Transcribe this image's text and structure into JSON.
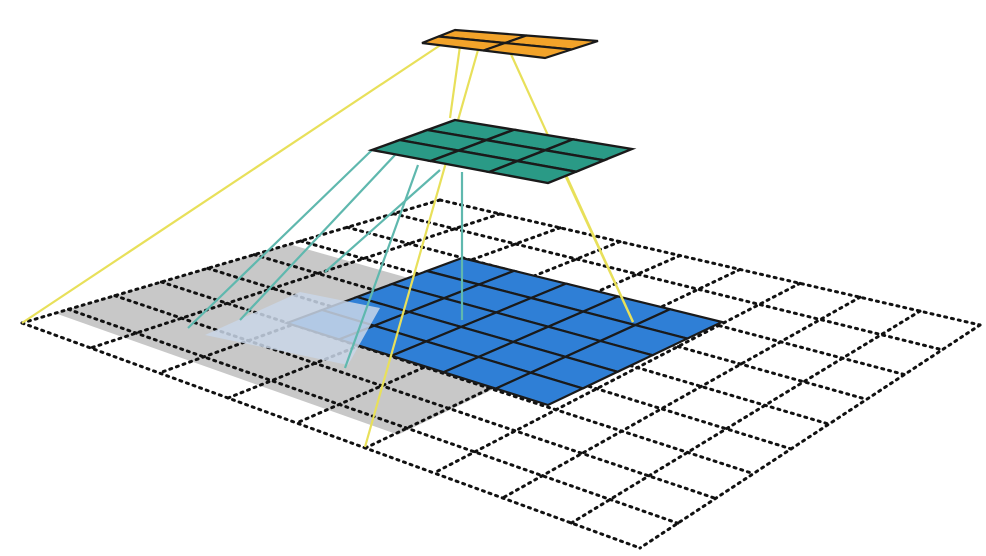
{
  "diagram": {
    "kind": "receptive-field pyramid",
    "colors": {
      "background": "#ffffff",
      "base_grid_dots": "#111111",
      "receptive_field_gray": "#c8c8c8",
      "input_window_blue": "#2f7fd6",
      "overlap_light_blue": "#c9d6e8",
      "middle_layer_teal": "#2a9a86",
      "top_layer_orange": "#f2a32a",
      "cell_border": "#1a1a1a",
      "connector_yellow": "#e8e05a",
      "connector_teal": "#5fb8ae"
    },
    "layers": [
      {
        "id": "base",
        "grid": [
          9,
          9
        ],
        "style": "dotted"
      },
      {
        "id": "gray-field",
        "grid": [
          5,
          5
        ]
      },
      {
        "id": "blue-window",
        "grid": [
          5,
          5
        ]
      },
      {
        "id": "middle",
        "grid": [
          3,
          3
        ]
      },
      {
        "id": "top",
        "grid": [
          2,
          2
        ]
      }
    ]
  }
}
